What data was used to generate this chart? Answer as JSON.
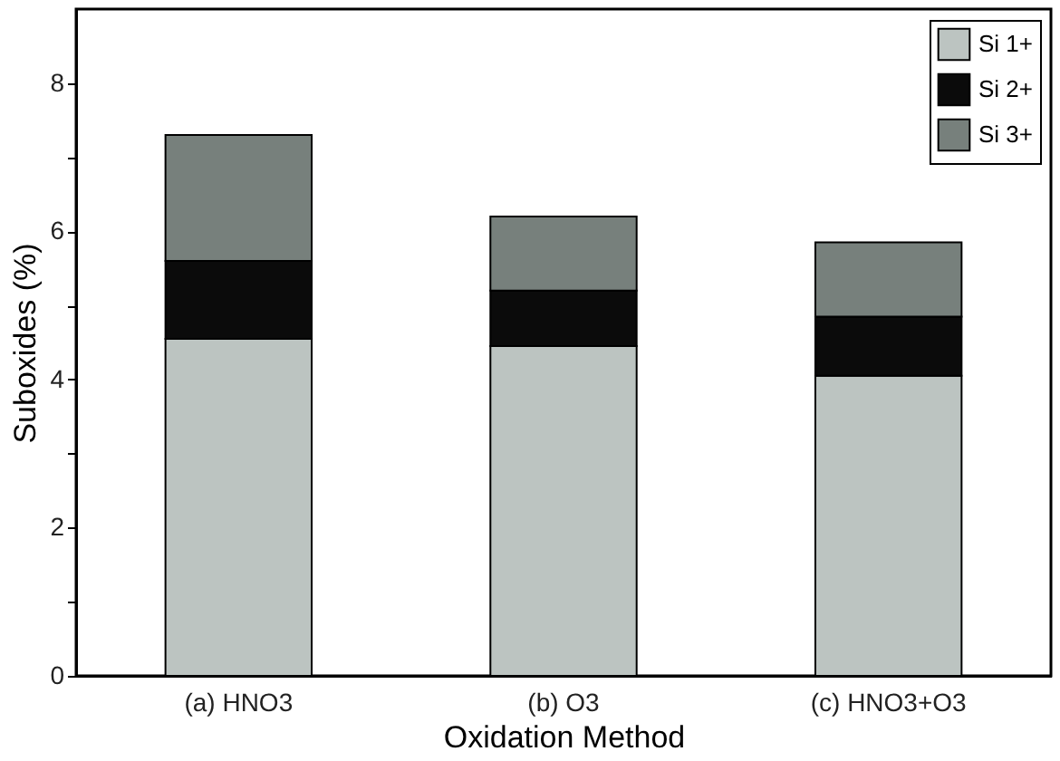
{
  "chart_data": {
    "type": "bar",
    "stacked": true,
    "xlabel": "Oxidation  Method",
    "ylabel": "Suboxides  (%)",
    "categories": [
      "(a) HNO3",
      "(b) O3",
      "(c) HNO3+O3"
    ],
    "series": [
      {
        "name": "Si 1+",
        "color": "#bcc4c1",
        "values": [
          4.55,
          4.45,
          4.05
        ]
      },
      {
        "name": "Si 2+",
        "color": "#0b0b0b",
        "values": [
          1.05,
          0.75,
          0.8
        ]
      },
      {
        "name": "Si 3+",
        "color": "#77807c",
        "values": [
          1.7,
          1.0,
          1.0
        ]
      }
    ],
    "ylim": [
      0,
      9
    ],
    "yticks": [
      0,
      {
        "value": 1,
        "label": null
      },
      2,
      {
        "value": 3,
        "label": null
      },
      4,
      {
        "value": 5,
        "label": null
      },
      6,
      {
        "value": 7,
        "label": null
      },
      8
    ],
    "grid": false,
    "legend": "top right"
  }
}
